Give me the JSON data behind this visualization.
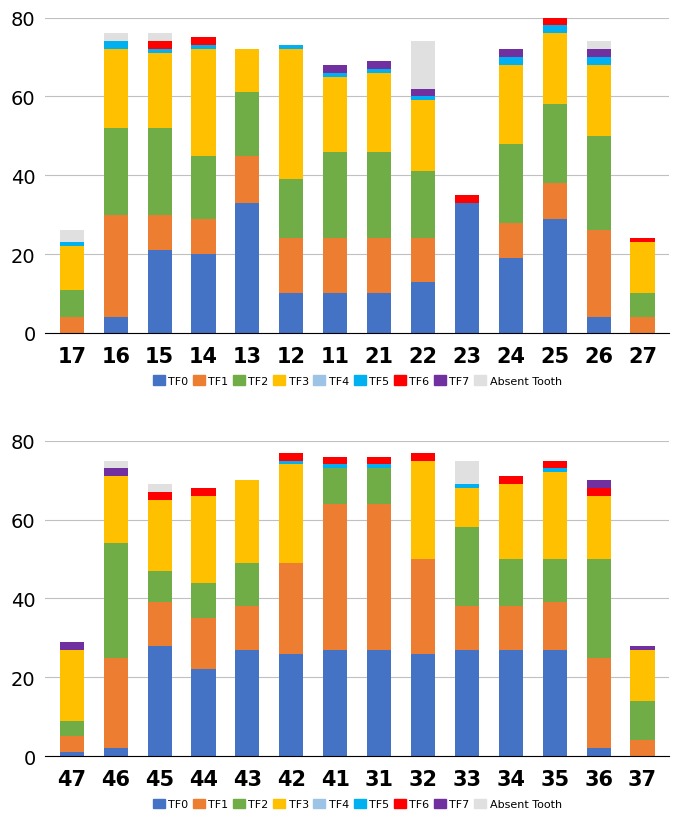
{
  "chart1": {
    "categories": [
      "17",
      "16",
      "15",
      "14",
      "13",
      "12",
      "11",
      "21",
      "22",
      "23",
      "24",
      "25",
      "26",
      "27"
    ],
    "TF0": [
      0,
      4,
      21,
      20,
      33,
      10,
      10,
      10,
      13,
      33,
      19,
      29,
      4,
      0
    ],
    "TF1": [
      4,
      26,
      9,
      9,
      12,
      14,
      14,
      14,
      11,
      0,
      9,
      9,
      22,
      4
    ],
    "TF2": [
      7,
      22,
      22,
      16,
      16,
      15,
      22,
      22,
      17,
      0,
      20,
      20,
      24,
      6
    ],
    "TF3": [
      11,
      20,
      19,
      27,
      11,
      33,
      19,
      20,
      18,
      0,
      20,
      18,
      18,
      13
    ],
    "TF4": [
      0,
      0,
      0,
      0,
      0,
      0,
      0,
      0,
      0,
      0,
      0,
      0,
      0,
      0
    ],
    "TF5": [
      1,
      2,
      1,
      1,
      0,
      1,
      1,
      1,
      1,
      0,
      2,
      2,
      2,
      0
    ],
    "TF6": [
      0,
      0,
      2,
      2,
      0,
      0,
      0,
      0,
      0,
      2,
      0,
      2,
      0,
      1
    ],
    "TF7": [
      0,
      0,
      0,
      0,
      0,
      0,
      2,
      2,
      2,
      0,
      2,
      2,
      2,
      0
    ],
    "absent": [
      3,
      2,
      2,
      0,
      0,
      0,
      0,
      0,
      12,
      0,
      0,
      0,
      2,
      0
    ]
  },
  "chart2": {
    "categories": [
      "47",
      "46",
      "45",
      "44",
      "43",
      "42",
      "41",
      "31",
      "32",
      "33",
      "34",
      "35",
      "36",
      "37"
    ],
    "TF0": [
      1,
      2,
      28,
      22,
      27,
      26,
      27,
      27,
      26,
      27,
      27,
      27,
      2,
      0
    ],
    "TF1": [
      4,
      23,
      11,
      13,
      11,
      23,
      37,
      37,
      24,
      11,
      11,
      12,
      23,
      4
    ],
    "TF2": [
      4,
      29,
      8,
      9,
      11,
      0,
      9,
      9,
      0,
      20,
      12,
      11,
      25,
      10
    ],
    "TF3": [
      18,
      17,
      18,
      22,
      21,
      25,
      0,
      0,
      25,
      10,
      19,
      22,
      16,
      13
    ],
    "TF4": [
      0,
      0,
      0,
      0,
      0,
      0,
      0,
      0,
      0,
      0,
      0,
      0,
      0,
      0
    ],
    "TF5": [
      0,
      0,
      0,
      0,
      0,
      1,
      1,
      1,
      0,
      1,
      0,
      1,
      0,
      0
    ],
    "TF6": [
      0,
      0,
      2,
      2,
      0,
      2,
      2,
      2,
      2,
      0,
      2,
      2,
      2,
      0
    ],
    "TF7": [
      2,
      2,
      0,
      0,
      0,
      0,
      0,
      0,
      0,
      0,
      0,
      0,
      2,
      1
    ],
    "absent": [
      0,
      2,
      2,
      0,
      0,
      0,
      0,
      0,
      0,
      6,
      0,
      0,
      0,
      0
    ]
  },
  "colors": {
    "TF0": "#4472C4",
    "TF1": "#ED7D31",
    "TF2": "#70AD47",
    "TF3": "#FFC000",
    "TF4": "#9DC3E6",
    "TF5": "#00B0F0",
    "TF6": "#FF0000",
    "TF7": "#7030A0",
    "absent": "#E0E0E0"
  },
  "ylim": [
    0,
    80
  ],
  "yticks": [
    0,
    20,
    40,
    60,
    80
  ]
}
